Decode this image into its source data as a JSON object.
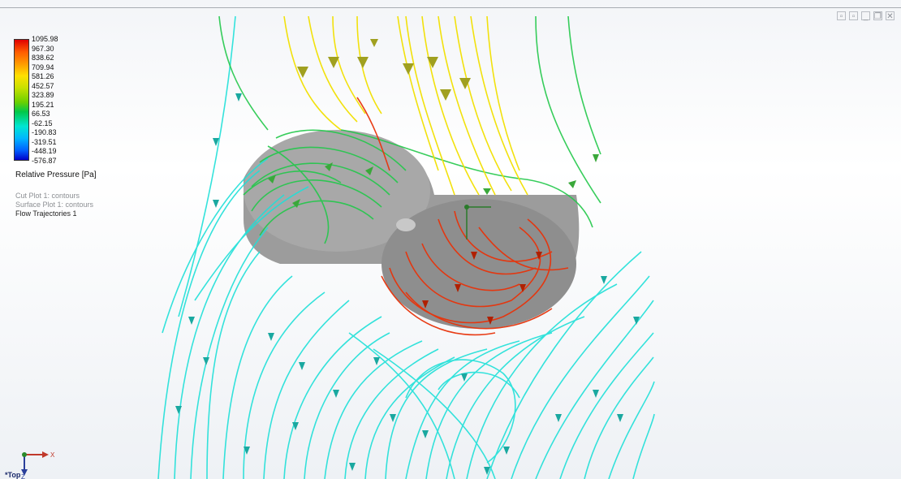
{
  "legend": {
    "title": "Relative Pressure [Pa]",
    "values": [
      "1095.98",
      "967.30",
      "838.62",
      "709.94",
      "581.26",
      "452.57",
      "323.89",
      "195.21",
      "66.53",
      "-62.15",
      "-190.83",
      "-319.51",
      "-448.19",
      "-576.87"
    ]
  },
  "plots": {
    "cut_plot": "Cut Plot 1: contours",
    "surface_plot": "Surface Plot 1: contours",
    "flow_trajectories": "Flow Trajectories 1"
  },
  "view": {
    "name": "*Top"
  },
  "triad": {
    "x_label": "X",
    "z_label": "Z"
  },
  "colors": {
    "high": "#e00000",
    "mid": "#ffe000",
    "green": "#22c84a",
    "low": "#1fe0d8"
  }
}
